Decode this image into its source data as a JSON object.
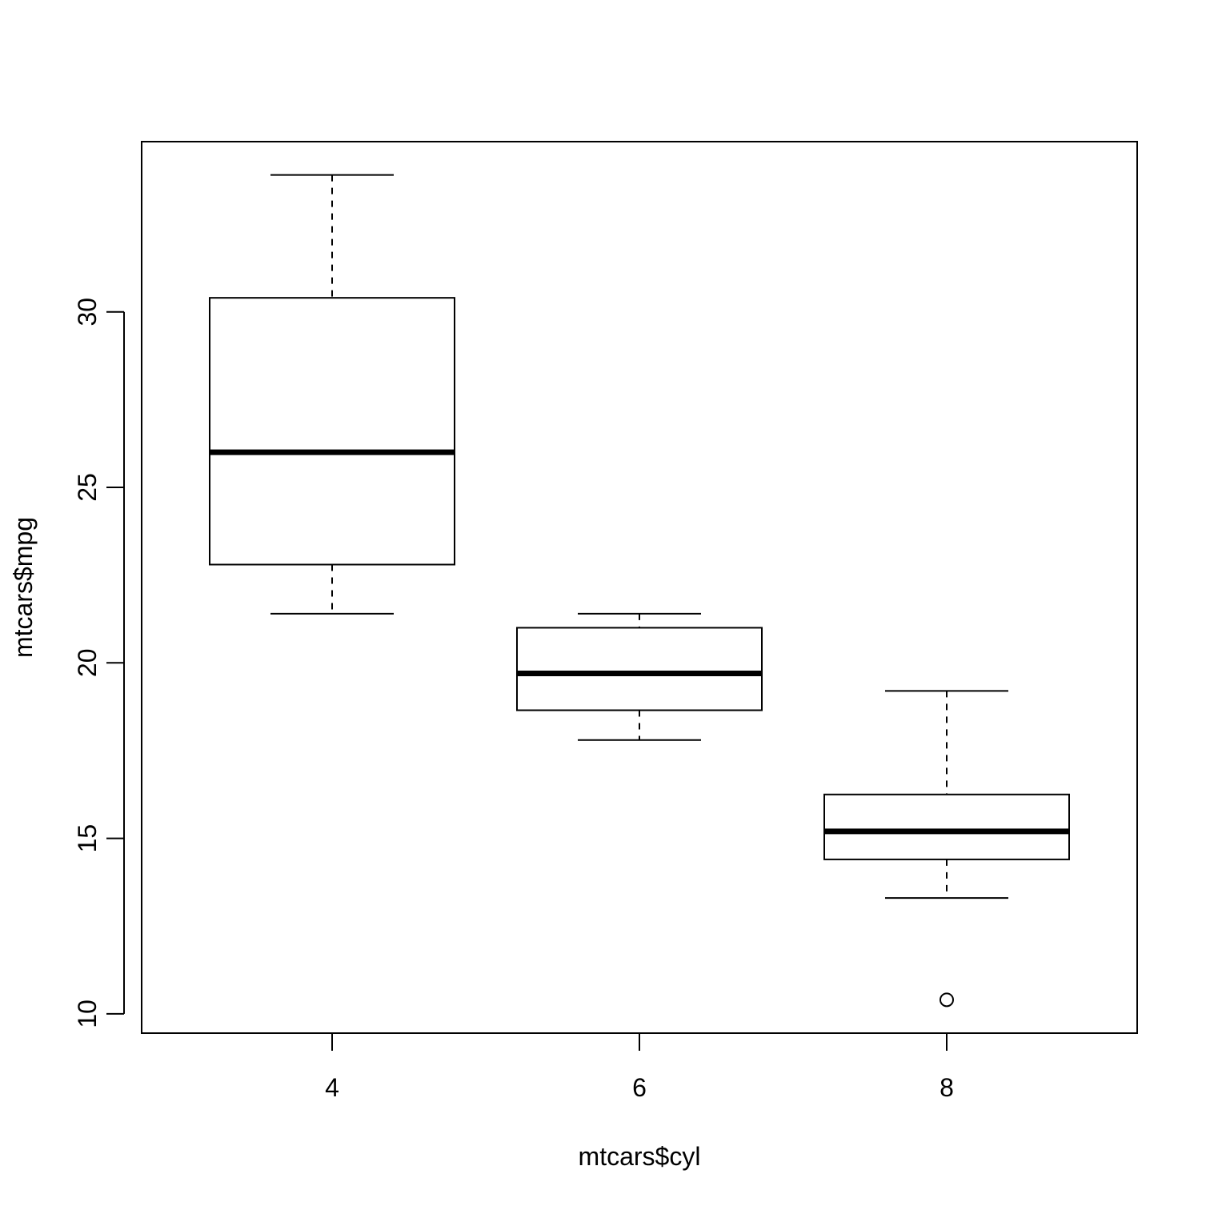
{
  "chart_data": {
    "type": "box",
    "title": "",
    "xlabel": "mtcars$cyl",
    "ylabel": "mtcars$mpg",
    "categories": [
      "4",
      "6",
      "8"
    ],
    "ylim": [
      9.45,
      34.85
    ],
    "yticks": [
      10,
      15,
      20,
      25,
      30
    ],
    "grid": false,
    "boxes": [
      {
        "category": "4",
        "whisker_low": 21.4,
        "q1": 22.8,
        "median": 26.0,
        "q3": 30.4,
        "whisker_high": 33.9,
        "outliers": []
      },
      {
        "category": "6",
        "whisker_low": 17.8,
        "q1": 18.65,
        "median": 19.7,
        "q3": 21.0,
        "whisker_high": 21.4,
        "outliers": []
      },
      {
        "category": "8",
        "whisker_low": 13.3,
        "q1": 14.4,
        "median": 15.2,
        "q3": 16.25,
        "whisker_high": 19.2,
        "outliers": [
          10.4
        ]
      }
    ]
  }
}
